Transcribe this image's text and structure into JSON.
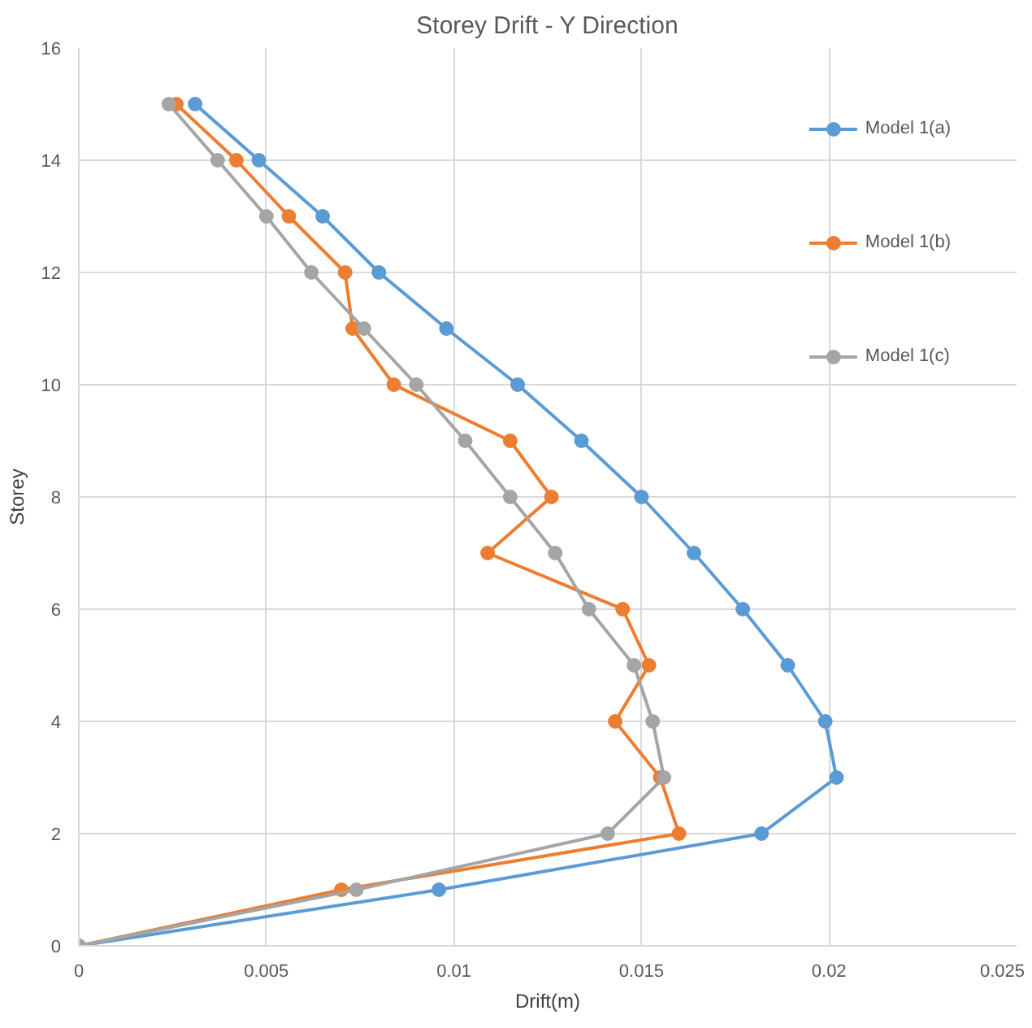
{
  "chart_data": {
    "type": "line",
    "title": "Storey Drift - Y Direction",
    "xlabel": "Drift(m)",
    "ylabel": "Storey",
    "series": [
      {
        "name": "Model 1(a)",
        "color": "#5b9bd5",
        "x": [
          0,
          0.0096,
          0.0182,
          0.0202,
          0.0199,
          0.0189,
          0.0177,
          0.0164,
          0.015,
          0.0134,
          0.0117,
          0.0098,
          0.008,
          0.0065,
          0.0048,
          0.0031
        ],
        "values": [
          0,
          1,
          2,
          3,
          4,
          5,
          6,
          7,
          8,
          9,
          10,
          11,
          12,
          13,
          14,
          15
        ]
      },
      {
        "name": "Model 1(b)",
        "color": "#ed7d31",
        "x": [
          0,
          0.007,
          0.016,
          0.0155,
          0.0143,
          0.0152,
          0.0145,
          0.0109,
          0.0126,
          0.0115,
          0.0084,
          0.0073,
          0.0071,
          0.0056,
          0.0042,
          0.0026
        ],
        "values": [
          0,
          1,
          2,
          3,
          4,
          5,
          6,
          7,
          8,
          9,
          10,
          11,
          12,
          13,
          14,
          15
        ]
      },
      {
        "name": "Model 1(c)",
        "color": "#a5a5a5",
        "x": [
          0,
          0.0074,
          0.0141,
          0.0156,
          0.0153,
          0.0148,
          0.0136,
          0.0127,
          0.0115,
          0.0103,
          0.009,
          0.0076,
          0.0062,
          0.005,
          0.0037,
          0.0024
        ],
        "values": [
          0,
          1,
          2,
          3,
          4,
          5,
          6,
          7,
          8,
          9,
          10,
          11,
          12,
          13,
          14,
          15
        ]
      }
    ],
    "xlim": [
      0,
      0.025
    ],
    "xticks": [
      0,
      0.005,
      0.01,
      0.015,
      0.02,
      0.025
    ],
    "ylim": [
      0,
      16
    ],
    "yticks": [
      0,
      2,
      4,
      6,
      8,
      10,
      12,
      14,
      16
    ],
    "grid": true,
    "legend": "top right",
    "marker": "circle",
    "line_style": "solid"
  }
}
